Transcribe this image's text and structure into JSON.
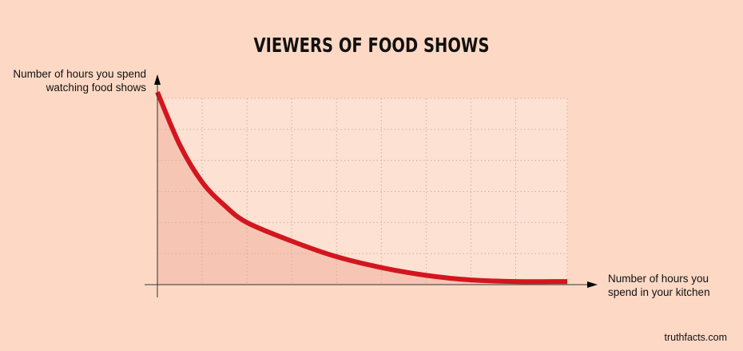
{
  "chart_data": {
    "type": "area",
    "title": "VIEWERS OF FOOD SHOWS",
    "xlabel": "Number of hours you spend in your kitchen",
    "ylabel": "Number of hours you spend watching food shows",
    "xlabel_lines": [
      "Number of hours you",
      "spend in your kitchen"
    ],
    "ylabel_lines": [
      "Number of hours you spend",
      "watching food shows"
    ],
    "xlim": [
      0,
      9.15
    ],
    "ylim": [
      0,
      6
    ],
    "grid": true,
    "x_gridlines": [
      1,
      2,
      3,
      4,
      5,
      6,
      7,
      8,
      9.15
    ],
    "y_gridlines": [
      1,
      2,
      3,
      4,
      5,
      6
    ],
    "series": [
      {
        "name": "viewers",
        "color": "#d2161f",
        "fill": "#f7c5b4",
        "x": [
          0,
          0.5,
          1,
          1.5,
          2,
          3,
          4,
          5,
          6,
          7,
          8,
          9.15
        ],
        "y": [
          6.2,
          4.5,
          3.3,
          2.55,
          2.0,
          1.4,
          0.9,
          0.55,
          0.3,
          0.15,
          0.1,
          0.1
        ]
      }
    ],
    "credit": "truthfacts.com"
  },
  "colors": {
    "background": "#fdd9c5",
    "plot_background": "#fde1d2",
    "grid": "#c9b3a8",
    "axis": "#333333"
  }
}
